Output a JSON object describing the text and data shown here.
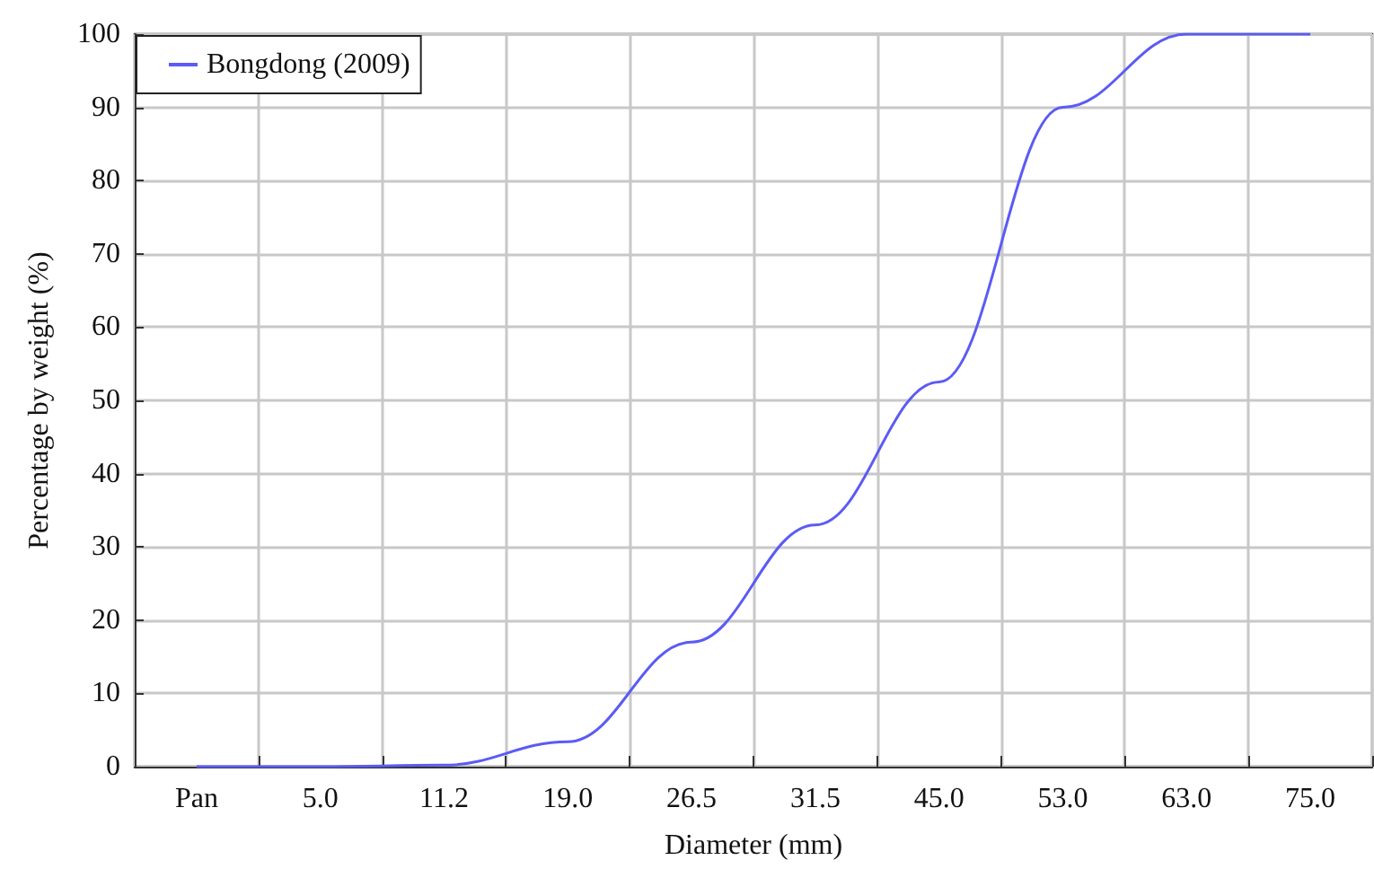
{
  "chart_data": {
    "type": "line",
    "xlabel": "Diameter (mm)",
    "ylabel": "Percentage by weight (%)",
    "categories": [
      "Pan",
      "5.0",
      "11.2",
      "19.0",
      "26.5",
      "31.5",
      "45.0",
      "53.0",
      "63.0",
      "75.0"
    ],
    "series": [
      {
        "name": "Bongdong (2009)",
        "color": "#5b5bf5",
        "values": [
          0,
          0,
          0.2,
          3.4,
          17,
          33,
          52.5,
          90,
          100,
          100
        ]
      }
    ],
    "ylim": [
      0,
      100
    ],
    "yticks": [
      0,
      10,
      20,
      30,
      40,
      50,
      60,
      70,
      80,
      90,
      100
    ],
    "grid": true,
    "legend": "top left",
    "marker": "none",
    "line_style": "solid"
  }
}
